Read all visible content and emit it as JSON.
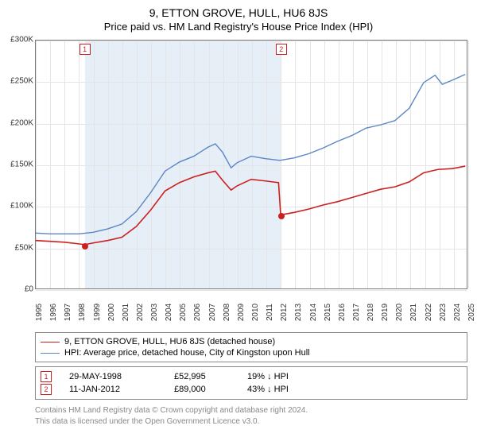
{
  "title": "9, ETTON GROVE, HULL, HU6 8JS",
  "subtitle": "Price paid vs. HM Land Registry's House Price Index (HPI)",
  "chart": {
    "type": "line",
    "background_color": "#ffffff",
    "border_color": "#777777",
    "grid_color": "#e5e5e5",
    "shade_color": "rgba(173,200,230,0.30)",
    "xlim": [
      1995,
      2025
    ],
    "ylim": [
      0,
      300000
    ],
    "ytick_step": 50000,
    "ytick_labels": [
      "£0",
      "£50K",
      "£100K",
      "£150K",
      "£200K",
      "£250K",
      "£300K"
    ],
    "xticks": [
      1995,
      1996,
      1997,
      1998,
      1999,
      2000,
      2001,
      2002,
      2003,
      2004,
      2005,
      2006,
      2007,
      2008,
      2009,
      2010,
      2011,
      2012,
      2013,
      2014,
      2015,
      2016,
      2017,
      2018,
      2019,
      2020,
      2021,
      2022,
      2023,
      2024,
      2025
    ],
    "series": [
      {
        "name": "property",
        "label": "9, ETTON GROVE, HULL, HU6 8JS (detached house)",
        "color": "#cc2020",
        "line_width": 1.6,
        "x": [
          1995,
          1996,
          1997,
          1998,
          1998.4,
          1999,
          2000,
          2001,
          2002,
          2003,
          2004,
          2005,
          2006,
          2007,
          2007.5,
          2008,
          2008.6,
          2009,
          2010,
          2011,
          2011.9,
          2012.05,
          2013,
          2014,
          2015,
          2016,
          2017,
          2018,
          2019,
          2020,
          2021,
          2022,
          2023,
          2024,
          2024.9
        ],
        "y": [
          58000,
          57000,
          56000,
          54000,
          52995,
          55000,
          58000,
          62000,
          75000,
          95000,
          118000,
          128000,
          135000,
          140000,
          142000,
          131000,
          119000,
          124000,
          132000,
          130000,
          128000,
          89000,
          92000,
          96000,
          101000,
          105000,
          110000,
          115000,
          120000,
          123000,
          129000,
          140000,
          144000,
          145000,
          148000
        ]
      },
      {
        "name": "hpi",
        "label": "HPI: Average price, detached house, City of Kingston upon Hull",
        "color": "#5b86c4",
        "line_width": 1.4,
        "x": [
          1995,
          1996,
          1997,
          1998,
          1999,
          2000,
          2001,
          2002,
          2003,
          2004,
          2005,
          2006,
          2007,
          2007.5,
          2008,
          2008.6,
          2009,
          2010,
          2011,
          2012,
          2013,
          2014,
          2015,
          2016,
          2017,
          2018,
          2019,
          2020,
          2021,
          2022,
          2022.8,
          2023.3,
          2024,
          2024.9
        ],
        "y": [
          67000,
          66000,
          66000,
          66000,
          68000,
          72000,
          78000,
          93000,
          116000,
          142000,
          153000,
          160000,
          171000,
          175000,
          165000,
          146000,
          152000,
          160000,
          157000,
          155000,
          158000,
          163000,
          170000,
          178000,
          185000,
          194000,
          198000,
          203000,
          218000,
          249000,
          258000,
          247000,
          252000,
          259000
        ]
      }
    ],
    "sales_markers": [
      {
        "n": "1",
        "date": "29-MAY-1998",
        "x": 1998.4,
        "price": 52995,
        "price_label": "£52,995",
        "diff": "19% ↓ HPI"
      },
      {
        "n": "2",
        "date": "11-JAN-2012",
        "x": 2012.03,
        "price": 89000,
        "price_label": "£89,000",
        "diff": "43% ↓ HPI"
      }
    ],
    "shaded_range": [
      1998.4,
      2012.03
    ],
    "marker_dot_color": "#cc2020",
    "badge_border": "#cc2020",
    "label_fontsize": 10,
    "title_fontsize": 14
  },
  "footer": {
    "line1": "Contains HM Land Registry data © Crown copyright and database right 2024.",
    "line2": "This data is licensed under the Open Government Licence v3.0."
  }
}
